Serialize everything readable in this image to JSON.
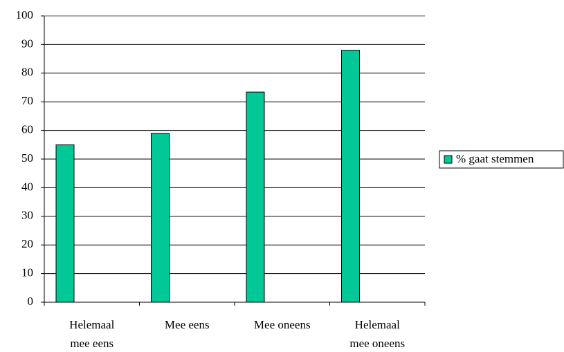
{
  "chart_data": {
    "type": "bar",
    "categories": [
      "Helemaal mee eens",
      "Mee eens",
      "Mee oneens",
      "Helemaal mee oneens"
    ],
    "series": [
      {
        "name": "% gaat stemmen",
        "color": "#00c896",
        "values": [
          55,
          59,
          73.4,
          88
        ]
      }
    ],
    "ylim": [
      0,
      100
    ],
    "yticks": [
      0,
      10,
      20,
      30,
      40,
      50,
      60,
      70,
      80,
      90,
      100
    ],
    "grid": true,
    "legend": "right"
  }
}
